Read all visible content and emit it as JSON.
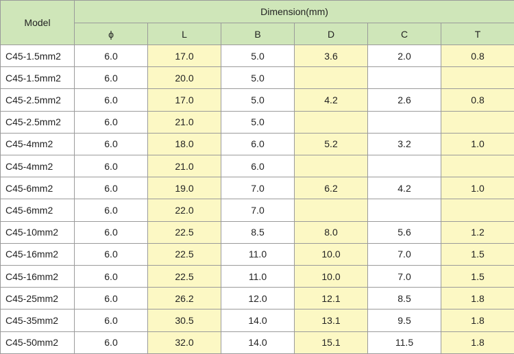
{
  "header": {
    "model": "Model",
    "dimension": "Dimension(mm)",
    "columns": [
      "ϕ",
      "L",
      "B",
      "D",
      "C",
      "T"
    ]
  },
  "rows": [
    {
      "model": "C45-1.5mm2",
      "phi": "6.0",
      "L": "17.0",
      "B": "5.0",
      "D": "3.6",
      "C": "2.0",
      "T": "0.8"
    },
    {
      "model": "C45-1.5mm2",
      "phi": "6.0",
      "L": "20.0",
      "B": "5.0",
      "D": "",
      "C": "",
      "T": ""
    },
    {
      "model": "C45-2.5mm2",
      "phi": "6.0",
      "L": "17.0",
      "B": "5.0",
      "D": "4.2",
      "C": "2.6",
      "T": "0.8"
    },
    {
      "model": "C45-2.5mm2",
      "phi": "6.0",
      "L": "21.0",
      "B": "5.0",
      "D": "",
      "C": "",
      "T": ""
    },
    {
      "model": "C45-4mm2",
      "phi": "6.0",
      "L": "18.0",
      "B": "6.0",
      "D": "5.2",
      "C": "3.2",
      "T": "1.0"
    },
    {
      "model": "C45-4mm2",
      "phi": "6.0",
      "L": "21.0",
      "B": "6.0",
      "D": "",
      "C": "",
      "T": ""
    },
    {
      "model": "C45-6mm2",
      "phi": "6.0",
      "L": "19.0",
      "B": "7.0",
      "D": "6.2",
      "C": "4.2",
      "T": "1.0"
    },
    {
      "model": "C45-6mm2",
      "phi": "6.0",
      "L": "22.0",
      "B": "7.0",
      "D": "",
      "C": "",
      "T": ""
    },
    {
      "model": "C45-10mm2",
      "phi": "6.0",
      "L": "22.5",
      "B": "8.5",
      "D": "8.0",
      "C": "5.6",
      "T": "1.2"
    },
    {
      "model": "C45-16mm2",
      "phi": "6.0",
      "L": "22.5",
      "B": "11.0",
      "D": "10.0",
      "C": "7.0",
      "T": "1.5"
    },
    {
      "model": "C45-16mm2",
      "phi": "6.0",
      "L": "22.5",
      "B": "11.0",
      "D": "10.0",
      "C": "7.0",
      "T": "1.5"
    },
    {
      "model": "C45-25mm2",
      "phi": "6.0",
      "L": "26.2",
      "B": "12.0",
      "D": "12.1",
      "C": "8.5",
      "T": "1.8"
    },
    {
      "model": "C45-35mm2",
      "phi": "6.0",
      "L": "30.5",
      "B": "14.0",
      "D": "13.1",
      "C": "9.5",
      "T": "1.8"
    },
    {
      "model": "C45-50mm2",
      "phi": "6.0",
      "L": "32.0",
      "B": "14.0",
      "D": "15.1",
      "C": "11.5",
      "T": "1.8"
    }
  ],
  "colors": {
    "header_bg": "#cfe6b9",
    "highlight_bg": "#fcf8c4",
    "plain_bg": "#ffffff",
    "border": "#9a9a9a"
  }
}
